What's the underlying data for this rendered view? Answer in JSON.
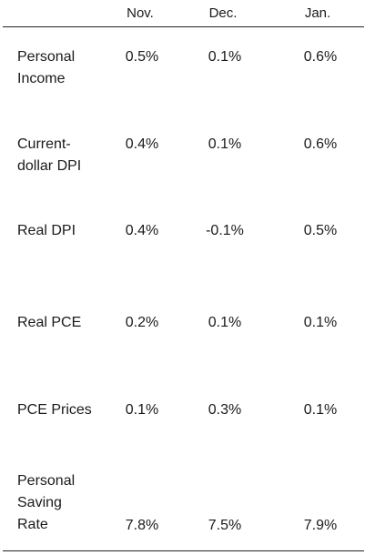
{
  "columns": [
    "Nov.",
    "Dec.",
    "Jan."
  ],
  "rows": [
    {
      "label": "Personal\nIncome",
      "values": [
        "0.5%",
        "0.1%",
        "0.6%"
      ]
    },
    {
      "label": "Current-\ndollar DPI",
      "values": [
        "0.4%",
        "0.1%",
        "0.6%"
      ]
    },
    {
      "label": "Real DPI",
      "values": [
        "0.4%",
        "-0.1%",
        "0.5%"
      ]
    },
    {
      "label": "Real PCE",
      "values": [
        "0.2%",
        "0.1%",
        "0.1%"
      ]
    },
    {
      "label": "PCE Prices",
      "values": [
        "0.1%",
        "0.3%",
        "0.1%"
      ]
    },
    {
      "label": "Personal\nSaving\nRate",
      "values": [
        "7.8%",
        "7.5%",
        "7.9%"
      ]
    }
  ]
}
